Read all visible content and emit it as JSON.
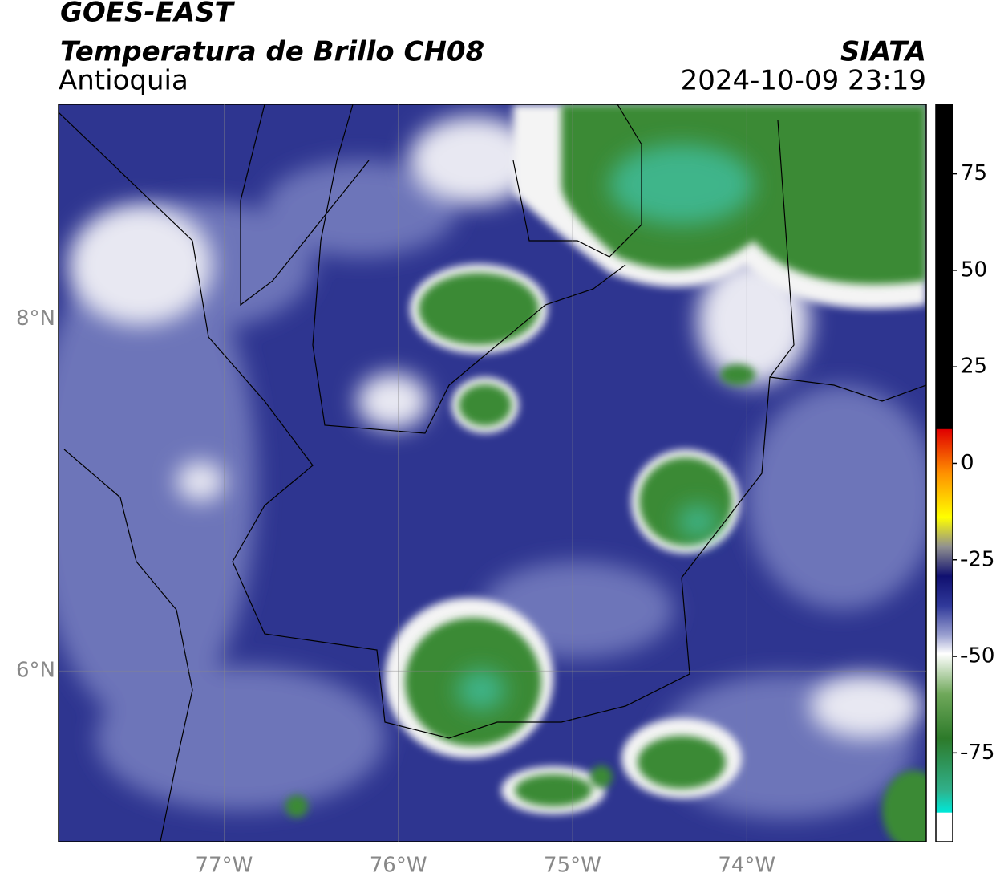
{
  "header": {
    "title": "GOES-EAST",
    "subtitle": "Temperatura de Brillo CH08",
    "region": "Antioquia",
    "source": "SIATA",
    "datetime": "2024-10-09 23:19"
  },
  "map": {
    "xlim": [
      -77.95,
      -72.97
    ],
    "ylim": [
      5.03,
      9.22
    ],
    "xticks": [
      {
        "value": -77,
        "label": "77°W"
      },
      {
        "value": -76,
        "label": "76°W"
      },
      {
        "value": -75,
        "label": "75°W"
      },
      {
        "value": -74,
        "label": "74°W"
      }
    ],
    "yticks": [
      {
        "value": 8,
        "label": "8°N"
      },
      {
        "value": 6,
        "label": "6°N"
      }
    ]
  },
  "colorbar": {
    "ylim": [
      -98,
      93
    ],
    "ticks": [
      75,
      50,
      25,
      0,
      -25,
      -50,
      -75
    ]
  }
}
